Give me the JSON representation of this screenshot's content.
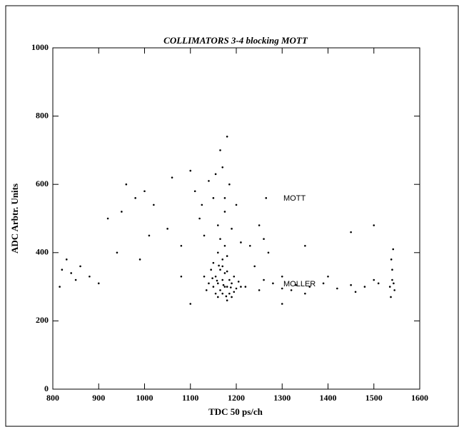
{
  "chart_data": {
    "type": "scatter",
    "title": "COLLIMATORS 3-4 blocking MOTT",
    "x_label": "TDC 50 ps/ch",
    "y_label": "ADC Arbtr. Units",
    "annotations": [
      "MOTT",
      "MOLLER"
    ],
    "color": "#000000",
    "xlim": [
      800,
      1600
    ],
    "xticks": [
      800,
      900,
      1000,
      1100,
      1200,
      1300,
      1400,
      1500,
      1600
    ],
    "ylim": [
      0,
      1000
    ],
    "yticks": [
      0,
      200,
      400,
      600,
      800,
      1000
    ],
    "x": [
      1150,
      1160,
      1170,
      1180,
      1175,
      1165,
      1185,
      1155,
      1190,
      1200,
      1145,
      1170,
      1160,
      1180,
      1195,
      1140,
      1175,
      1165,
      1185,
      1155,
      1170,
      1160,
      1180,
      1150,
      1210,
      1135,
      1190,
      1175,
      1165,
      1170,
      1180,
      1158,
      1172,
      1188,
      1148,
      1162,
      1178,
      1195,
      1205,
      1130,
      1160,
      1175,
      1150,
      1185,
      1170,
      1165,
      1180,
      1140,
      1200,
      1120,
      1110,
      1190,
      1155,
      1175,
      1130,
      1210,
      1100,
      1125,
      1230,
      1250,
      1260,
      1270,
      1240,
      1265,
      1220,
      1250,
      1280,
      1300,
      1330,
      1360,
      1390,
      1420,
      1450,
      1480,
      1510,
      1300,
      1350,
      1400,
      1460,
      1500,
      1260,
      1320,
      1535,
      1540,
      1545,
      1540,
      1538,
      1542,
      1537,
      1543,
      820,
      830,
      840,
      860,
      880,
      900,
      920,
      950,
      980,
      1000,
      1020,
      960,
      1050,
      1080,
      1010,
      940,
      815,
      850,
      1060,
      990,
      1300,
      1450,
      1500,
      1100,
      1080,
      1350
    ],
    "y": [
      300,
      310,
      320,
      300,
      340,
      290,
      280,
      330,
      310,
      295,
      350,
      360,
      270,
      260,
      330,
      310,
      300,
      350,
      320,
      280,
      380,
      400,
      390,
      370,
      300,
      290,
      270,
      420,
      440,
      280,
      345,
      318,
      305,
      298,
      325,
      362,
      272,
      285,
      315,
      330,
      480,
      520,
      560,
      600,
      650,
      700,
      740,
      610,
      540,
      500,
      580,
      470,
      630,
      560,
      450,
      430,
      640,
      540,
      420,
      480,
      440,
      400,
      360,
      560,
      300,
      290,
      310,
      295,
      305,
      300,
      310,
      295,
      305,
      300,
      310,
      330,
      280,
      330,
      285,
      320,
      320,
      290,
      300,
      320,
      290,
      350,
      380,
      410,
      270,
      310,
      350,
      380,
      340,
      360,
      330,
      310,
      500,
      520,
      560,
      580,
      540,
      600,
      470,
      420,
      450,
      400,
      300,
      320,
      620,
      380,
      250,
      460,
      480,
      250,
      330,
      420
    ]
  }
}
